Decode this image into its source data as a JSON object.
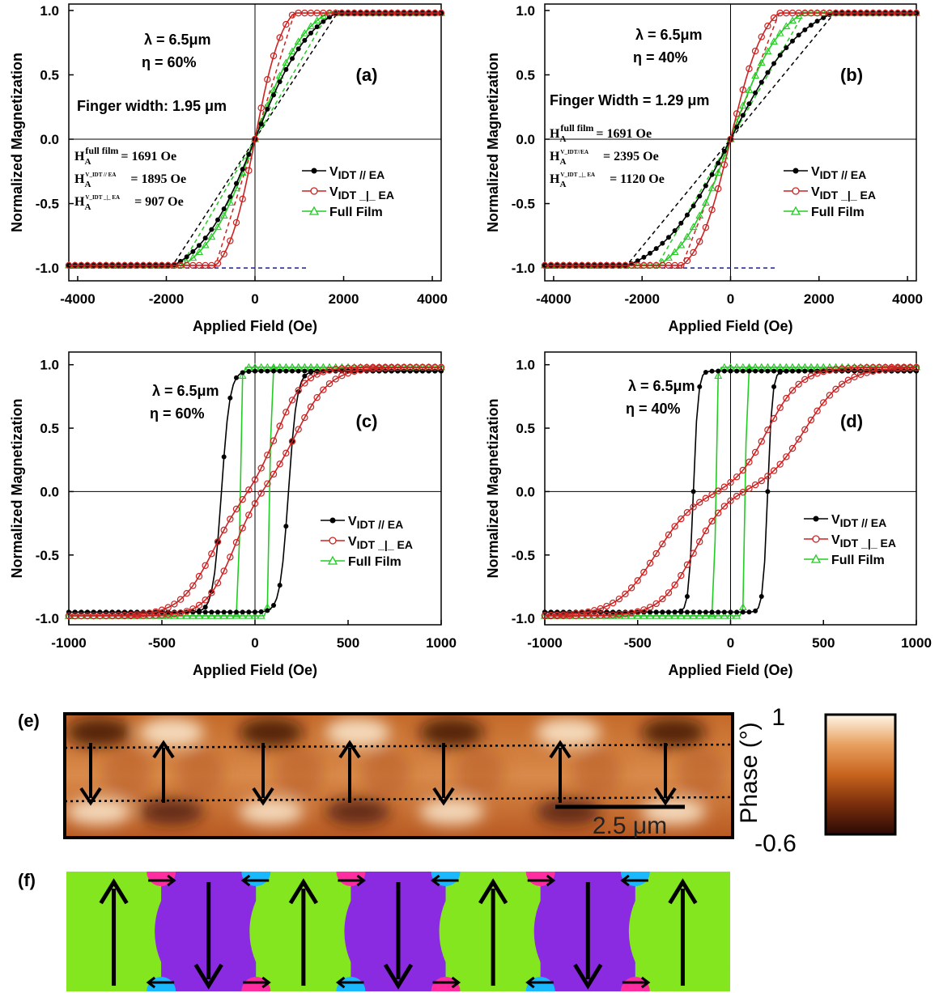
{
  "chart_data": [
    {
      "type": "line",
      "panel_label": "(a)",
      "xlabel": "Applied Field (Oe)",
      "ylabel": "Normalized Magnetization",
      "xlim": [
        -4200,
        4200
      ],
      "ylim": [
        -1.1,
        1.05
      ],
      "xticks": [
        -4000,
        -2000,
        0,
        2000,
        4000
      ],
      "yticks": [
        -1.0,
        -0.5,
        0.0,
        0.5,
        1.0
      ],
      "annotations": [
        "λ = 6.5μm",
        "η = 60%",
        "Finger width: 1.95 μm"
      ],
      "anisotropy": [
        {
          "label": "H",
          "sub": "A",
          "sup": "full film",
          "value": "= 1691 Oe"
        },
        {
          "label": "H",
          "sub": "A",
          "sup": "V_IDT // EA",
          "value": "= 1895 Oe"
        },
        {
          "label": "H",
          "sub": "A",
          "sup": "V_IDT _|_ EA",
          "value": "= 907 Oe"
        }
      ],
      "legend": [
        {
          "text": "V",
          "sub": "IDT // EA",
          "color": "#000000",
          "marker": "filled-circle"
        },
        {
          "text": "V",
          "sub": "IDT _|_ EA",
          "color": "#cc2222",
          "marker": "open-circle"
        },
        {
          "text": "Full Film",
          "sub": "",
          "color": "#22cc22",
          "marker": "open-triangle"
        }
      ],
      "series": [
        {
          "name": "V_IDT // EA",
          "color": "#000000",
          "kind": "sat",
          "hsat": 1895,
          "hc": 0
        },
        {
          "name": "V_IDT _|_ EA",
          "color": "#cc2222",
          "kind": "sat",
          "hsat": 907,
          "hc": 0
        },
        {
          "name": "Full Film",
          "color": "#22cc22",
          "kind": "sat",
          "hsat": 1691,
          "hc": 0
        }
      ],
      "guides": [
        {
          "x1": -1895,
          "y1": -1.0,
          "x2": 1895,
          "y2": 1.0,
          "color": "#000000"
        },
        {
          "x1": -907,
          "y1": -1.0,
          "x2": 907,
          "y2": 1.0,
          "color": "#cc2222"
        },
        {
          "x1": -1691,
          "y1": -1.0,
          "x2": 1691,
          "y2": 1.0,
          "color": "#22cc22"
        },
        {
          "x1": -4200,
          "y1": -1.0,
          "x2": 1200,
          "y2": -1.0,
          "color": "#1a1aa0"
        }
      ]
    },
    {
      "type": "line",
      "panel_label": "(b)",
      "xlabel": "Applied Field (Oe)",
      "ylabel": "Normalized Magnetization",
      "xlim": [
        -4200,
        4200
      ],
      "ylim": [
        -1.1,
        1.05
      ],
      "xticks": [
        -4000,
        -2000,
        0,
        2000,
        4000
      ],
      "yticks": [
        -1.0,
        -0.5,
        0.0,
        0.5,
        1.0
      ],
      "annotations": [
        "λ = 6.5μm",
        "η = 40%",
        "Finger Width = 1.29 μm"
      ],
      "anisotropy": [
        {
          "label": "H",
          "sub": "A",
          "sup": "full film",
          "value": "= 1691 Oe"
        },
        {
          "label": "H",
          "sub": "A",
          "sup": "V_IDT//EA",
          "value": "= 2395 Oe"
        },
        {
          "label": "H",
          "sub": "A",
          "sup": "V_IDT _|_ EA",
          "value": "= 1120 Oe"
        }
      ],
      "legend": [
        {
          "text": "V",
          "sub": "IDT // EA",
          "color": "#000000",
          "marker": "filled-circle"
        },
        {
          "text": "V",
          "sub": "IDT _|_ EA",
          "color": "#cc2222",
          "marker": "open-circle"
        },
        {
          "text": "Full Film",
          "sub": "",
          "color": "#22cc22",
          "marker": "open-triangle"
        }
      ],
      "series": [
        {
          "name": "V_IDT // EA",
          "color": "#000000",
          "kind": "sat",
          "hsat": 2395,
          "hc": 0
        },
        {
          "name": "V_IDT _|_ EA",
          "color": "#cc2222",
          "kind": "sat",
          "hsat": 1120,
          "hc": 0
        },
        {
          "name": "Full Film",
          "color": "#22cc22",
          "kind": "sat",
          "hsat": 1691,
          "hc": 0
        }
      ],
      "guides": [
        {
          "x1": -2395,
          "y1": -1.0,
          "x2": 2395,
          "y2": 1.0,
          "color": "#000000"
        },
        {
          "x1": -1120,
          "y1": -1.0,
          "x2": 1120,
          "y2": 1.0,
          "color": "#cc2222"
        },
        {
          "x1": -1691,
          "y1": -1.0,
          "x2": 1691,
          "y2": 1.0,
          "color": "#22cc22"
        },
        {
          "x1": -4200,
          "y1": -1.0,
          "x2": 1000,
          "y2": -1.0,
          "color": "#1a1aa0"
        }
      ]
    },
    {
      "type": "line",
      "panel_label": "(c)",
      "xlabel": "Applied Field (Oe)",
      "ylabel": "Normalized Magnetization",
      "xlim": [
        -1000,
        1000
      ],
      "ylim": [
        -1.05,
        1.1
      ],
      "xticks": [
        -1000,
        -500,
        0,
        500,
        1000
      ],
      "yticks": [
        -1.0,
        -0.5,
        0.0,
        0.5,
        1.0
      ],
      "annotations": [
        "λ = 6.5μm",
        "η = 60%"
      ],
      "anisotropy": [],
      "legend": [
        {
          "text": "V",
          "sub": "IDT // EA",
          "color": "#000000",
          "marker": "filled-circle"
        },
        {
          "text": "V",
          "sub": "IDT _|_ EA",
          "color": "#cc2222",
          "marker": "open-circle"
        },
        {
          "text": "Full Film",
          "sub": "",
          "color": "#22cc22",
          "marker": "open-triangle"
        }
      ],
      "series": [
        {
          "name": "V_IDT // EA",
          "color": "#000000",
          "kind": "loop",
          "hc": 180,
          "w": 45,
          "ysat": 0.95,
          "ramp": 20,
          "rampx": 80
        },
        {
          "name": "V_IDT _|_ EA",
          "color": "#cc2222",
          "kind": "loop",
          "hc": 0,
          "w": 150,
          "ysat": 0.98,
          "ramp": 0,
          "shift": 120,
          "spread": 350
        },
        {
          "name": "Full Film",
          "color": "#22cc22",
          "kind": "loop",
          "hc": 80,
          "w": 8,
          "ysat": 0.98,
          "ramp": 0
        }
      ],
      "guides": []
    },
    {
      "type": "line",
      "panel_label": "(d)",
      "xlabel": "Applied Field (Oe)",
      "ylabel": "Normalized Magnetization",
      "xlim": [
        -1000,
        1000
      ],
      "ylim": [
        -1.05,
        1.1
      ],
      "xticks": [
        -1000,
        -500,
        0,
        500,
        1000
      ],
      "yticks": [
        -1.0,
        -0.5,
        0.0,
        0.5,
        1.0
      ],
      "annotations": [
        "λ = 6.5μm",
        "η = 40%"
      ],
      "anisotropy": [],
      "legend": [
        {
          "text": "V",
          "sub": "IDT // EA",
          "color": "#000000",
          "marker": "filled-circle"
        },
        {
          "text": "V",
          "sub": "IDT _|_ EA",
          "color": "#cc2222",
          "marker": "open-circle"
        },
        {
          "text": "Full Film",
          "sub": "",
          "color": "#22cc22",
          "marker": "open-triangle"
        }
      ],
      "series": [
        {
          "name": "V_IDT // EA",
          "color": "#000000",
          "kind": "loop",
          "hc": 200,
          "w": 25,
          "ysat": 0.95,
          "ramp": 20,
          "rampx": 80
        },
        {
          "name": "V_IDT _|_ EA",
          "color": "#cc2222",
          "kind": "loop",
          "hc": 0,
          "w": 180,
          "ysat": 0.98,
          "ramp": 0,
          "shift": 200,
          "spread": 600
        },
        {
          "name": "Full Film",
          "color": "#22cc22",
          "kind": "loop",
          "hc": 80,
          "w": 8,
          "ysat": 0.98,
          "ramp": 0
        }
      ],
      "guides": []
    }
  ],
  "panel_e": {
    "label": "(e)",
    "scale_bar": "2.5 μm",
    "colorbar_title": "Phase (°)",
    "colorbar_max": "1",
    "colorbar_min": "-0.6",
    "colors": [
      "#2a0a05",
      "#7a2e0c",
      "#c8641e",
      "#e8a060",
      "#fff6e8"
    ],
    "arrows": [
      "down",
      "up",
      "down",
      "up",
      "down",
      "up",
      "down"
    ]
  },
  "panel_f": {
    "label": "(f)",
    "domains": [
      "up",
      "down",
      "up",
      "down",
      "up",
      "down",
      "up"
    ],
    "colors": {
      "up": "#84e61e",
      "down": "#8a2be2",
      "left": "#ff2da0",
      "right": "#1ab8ff"
    }
  }
}
